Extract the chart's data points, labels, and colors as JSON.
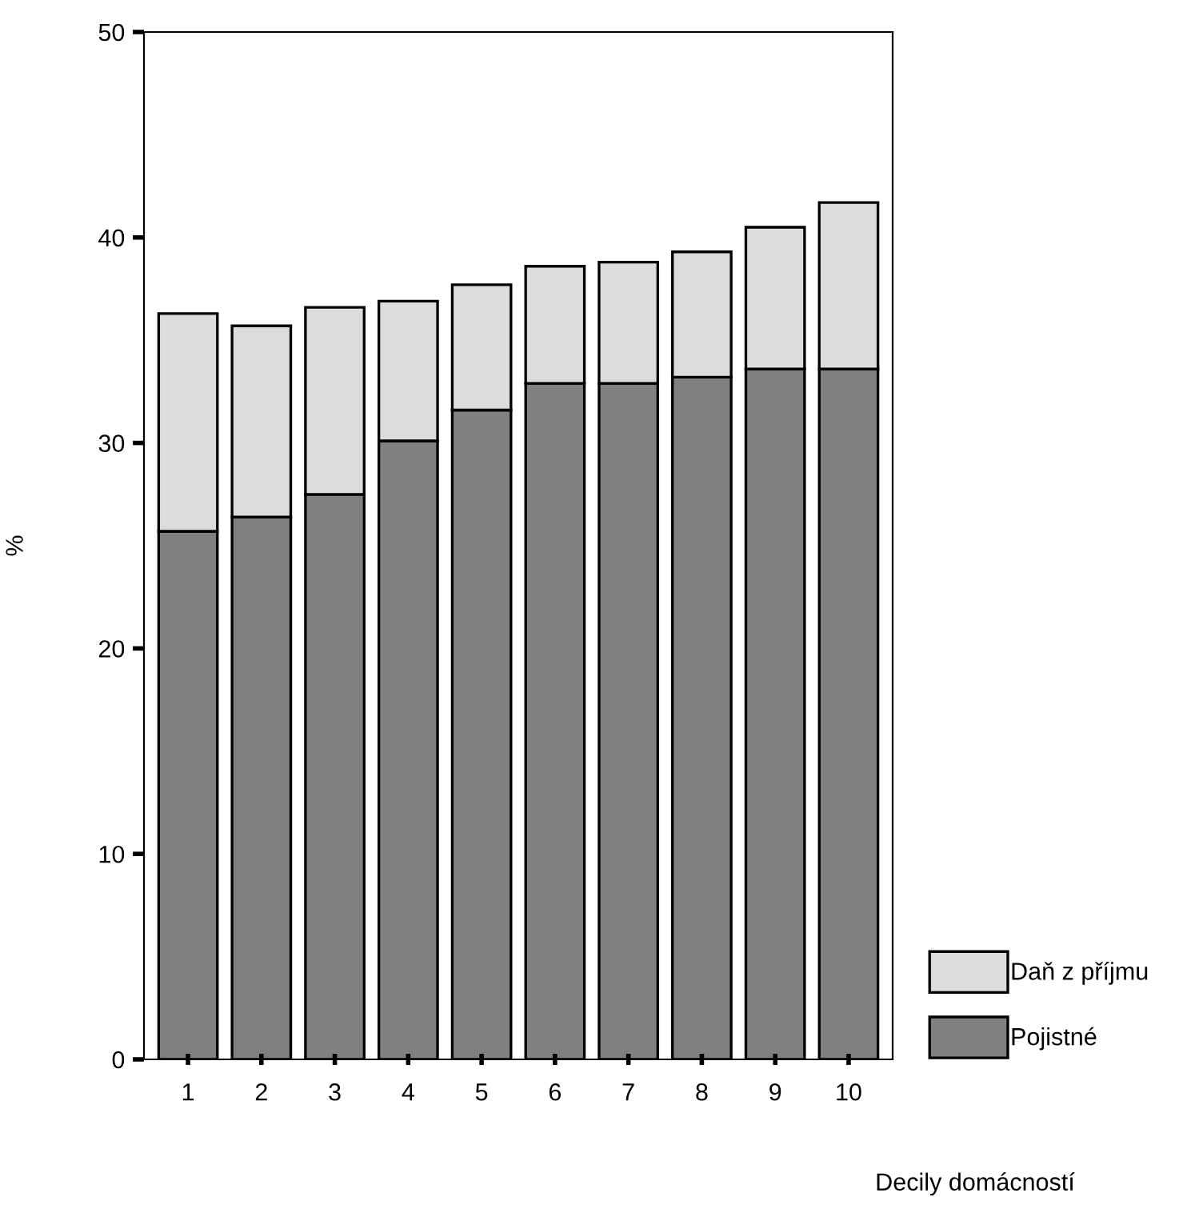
{
  "chart_data": {
    "type": "bar",
    "stacked": true,
    "xlabel": "Decily domácností",
    "ylabel": "%",
    "categories": [
      "1",
      "2",
      "3",
      "4",
      "5",
      "6",
      "7",
      "8",
      "9",
      "10"
    ],
    "series": [
      {
        "name": "Pojistné",
        "color": "#808080",
        "values": [
          25.7,
          26.4,
          27.5,
          30.1,
          31.6,
          32.9,
          32.9,
          33.2,
          33.6,
          33.6
        ]
      },
      {
        "name": "Daň z příjmu",
        "color": "#dcdcdc",
        "values": [
          10.6,
          9.3,
          9.1,
          6.8,
          6.1,
          5.7,
          5.9,
          6.1,
          6.9,
          8.1
        ]
      }
    ],
    "ylim": [
      0,
      50
    ],
    "yticks": [
      0,
      10,
      20,
      30,
      40,
      50
    ],
    "grid": false,
    "legend": "bottom right"
  }
}
